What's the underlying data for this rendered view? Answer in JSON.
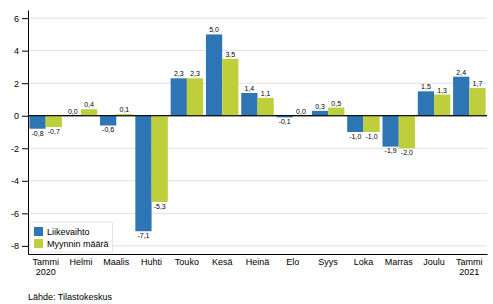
{
  "chart_data": {
    "type": "bar",
    "categories": [
      "Tammi\n2020",
      "Helmi",
      "Maalis",
      "Huhti",
      "Touko",
      "Kesä",
      "Heinä",
      "Elo",
      "Syys",
      "Loka",
      "Marras",
      "Joulu",
      "Tammi\n2021"
    ],
    "series": [
      {
        "name": "Liikevaihto",
        "color": "#2E75B6",
        "values": [
          -0.8,
          0.0,
          -0.6,
          -7.1,
          2.3,
          5.0,
          1.4,
          -0.1,
          0.3,
          -1.0,
          -1.9,
          1.5,
          2.4
        ],
        "value_labels": [
          "-0,8",
          "0,0",
          "-0,6",
          "-7,1",
          "2,3",
          "5,0",
          "1,4",
          "-0,1",
          "0,3",
          "-1,0",
          "-1,9",
          "1,5",
          "2,4"
        ]
      },
      {
        "name": "Myynnin määrä",
        "color": "#BFCE3B",
        "values": [
          -0.7,
          0.4,
          0.1,
          -5.3,
          2.3,
          3.5,
          1.1,
          0.0,
          0.5,
          -1.0,
          -2.0,
          1.3,
          1.7
        ],
        "value_labels": [
          "-0,7",
          "0,4",
          "0,1",
          "-5,3",
          "2,3",
          "3,5",
          "1,1",
          "0,0",
          "0,5",
          "-1,0",
          "-2,0",
          "1,3",
          "1,7"
        ]
      }
    ],
    "ylim": [
      -8.5,
      6.5
    ],
    "yticks": [
      -8,
      -6,
      -4,
      -2,
      0,
      2,
      4,
      6
    ],
    "grid": true,
    "legend": "lower left",
    "data_labels": true,
    "annotations": [
      "Lähde: Tilastokeskus"
    ]
  }
}
